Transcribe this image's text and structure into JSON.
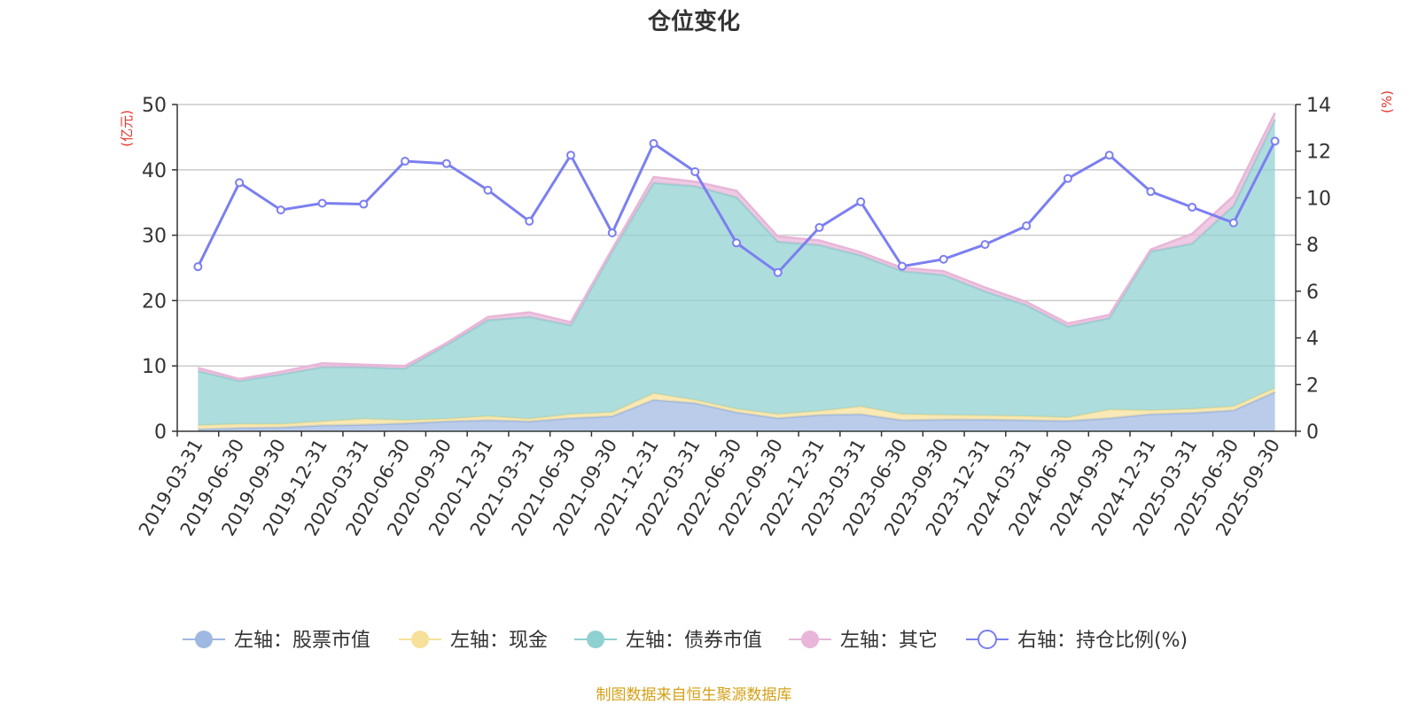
{
  "chart_data": {
    "type": "area",
    "title": "仓位变化",
    "left_axis": {
      "unit": "(亿元)",
      "ylim": [
        0,
        50
      ],
      "ticks": [
        0,
        10,
        20,
        30,
        40,
        50
      ]
    },
    "right_axis": {
      "unit": "(%)",
      "ylim": [
        0,
        14
      ],
      "ticks": [
        0,
        2,
        4,
        6,
        8,
        10,
        12,
        14
      ]
    },
    "grid": true,
    "legend_position": "bottom",
    "categories": [
      "2019-03-31",
      "2019-06-30",
      "2019-09-30",
      "2019-12-31",
      "2020-03-31",
      "2020-06-30",
      "2020-09-30",
      "2020-12-31",
      "2021-03-31",
      "2021-06-30",
      "2021-09-30",
      "2021-12-31",
      "2022-03-31",
      "2022-06-30",
      "2022-09-30",
      "2022-12-31",
      "2023-03-31",
      "2023-06-30",
      "2023-09-30",
      "2023-12-31",
      "2024-03-31",
      "2024-06-30",
      "2024-09-30",
      "2024-12-31",
      "2025-03-31",
      "2025-06-30",
      "2025-09-30"
    ],
    "series": [
      {
        "name": "左轴：股票市值",
        "axis": "left",
        "kind": "stacked-area",
        "color": "#9fb8e2",
        "values": [
          0.3,
          0.5,
          0.6,
          0.9,
          1.0,
          1.2,
          1.5,
          1.7,
          1.5,
          2.0,
          2.3,
          4.8,
          4.3,
          2.9,
          2.0,
          2.5,
          2.6,
          1.7,
          1.8,
          1.8,
          1.7,
          1.6,
          2.0,
          2.6,
          2.8,
          3.2,
          6.0
        ]
      },
      {
        "name": "左轴：现金",
        "axis": "left",
        "kind": "stacked-area",
        "color": "#f6e19a",
        "values": [
          0.6,
          0.6,
          0.5,
          0.6,
          0.9,
          0.5,
          0.4,
          0.6,
          0.4,
          0.6,
          0.6,
          1.0,
          0.5,
          0.5,
          0.6,
          0.6,
          1.2,
          0.9,
          0.7,
          0.6,
          0.6,
          0.5,
          1.3,
          0.6,
          0.6,
          0.6,
          0.6
        ]
      },
      {
        "name": "左轴：债券市值",
        "axis": "left",
        "kind": "stacked-area",
        "color": "#8fd0d1",
        "values": [
          8.3,
          6.6,
          7.6,
          8.3,
          7.9,
          7.9,
          11.3,
          14.7,
          15.6,
          13.6,
          24.6,
          32.2,
          32.7,
          32.4,
          26.4,
          25.4,
          23.1,
          21.9,
          21.4,
          19.0,
          17.0,
          13.9,
          14.0,
          24.3,
          25.3,
          30.7,
          41.1
        ]
      },
      {
        "name": "左轴：其它",
        "axis": "left",
        "kind": "stacked-area",
        "color": "#e8b6d8",
        "values": [
          0.5,
          0.3,
          0.4,
          0.6,
          0.4,
          0.4,
          0.3,
          0.5,
          0.7,
          0.5,
          0.4,
          0.9,
          0.7,
          1.0,
          0.8,
          0.7,
          0.5,
          0.5,
          0.6,
          0.6,
          0.5,
          0.5,
          0.5,
          0.3,
          1.5,
          1.5,
          1.0
        ]
      },
      {
        "name": "右轴：持仓比例(%)",
        "axis": "right",
        "kind": "line",
        "color": "#7b7ff0",
        "values": [
          7.05,
          10.65,
          9.48,
          9.77,
          9.73,
          11.57,
          11.47,
          10.33,
          9.0,
          11.83,
          8.5,
          12.33,
          11.12,
          8.07,
          6.8,
          8.73,
          9.83,
          7.07,
          7.37,
          8.0,
          8.8,
          10.83,
          11.83,
          10.27,
          9.6,
          8.93,
          12.43
        ]
      }
    ]
  },
  "footer": {
    "source": "制图数据来自恒生聚源数据库"
  }
}
